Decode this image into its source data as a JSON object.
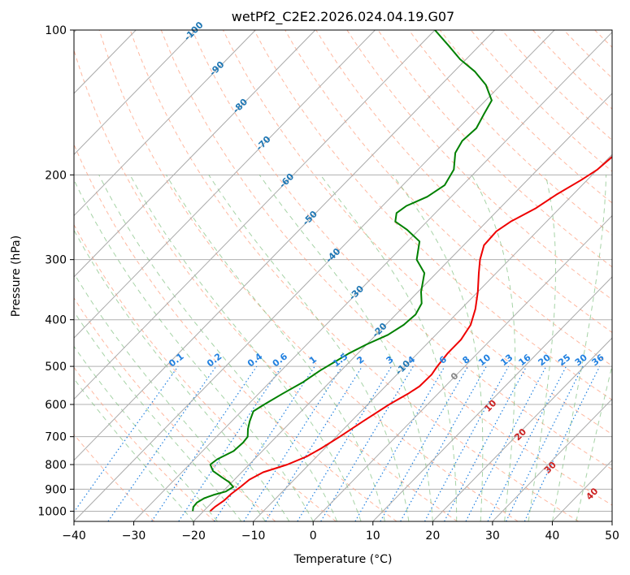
{
  "chart_data": {
    "type": "skew-t",
    "title": "wetPf2_C2E2.2026.024.04.19.G07",
    "xlabel": "Temperature (°C)",
    "ylabel": "Pressure (hPa)",
    "xlim": [
      -40,
      50
    ],
    "ylim": [
      1050,
      100
    ],
    "y_scale": "log",
    "x_ticks": [
      -40,
      -30,
      -20,
      -10,
      0,
      10,
      20,
      30,
      40,
      50
    ],
    "x_tick_labels": [
      "−40",
      "−30",
      "−20",
      "−10",
      "0",
      "10",
      "20",
      "30",
      "40",
      "50"
    ],
    "y_ticks": [
      100,
      200,
      300,
      400,
      500,
      600,
      700,
      800,
      900,
      1000
    ],
    "y_tick_labels": [
      "100",
      "200",
      "300",
      "400",
      "500",
      "600",
      "700",
      "800",
      "900",
      "1000"
    ],
    "grid": true,
    "colors": {
      "temperature": "#ee0000",
      "dewpoint": "#008000",
      "isotherm": "#aaaaaa",
      "dry_adiabat": "#ffa080",
      "moist_adiabat": "#80c080",
      "mixing_ratio": "#2080e0",
      "isotherm_label": "#1f77b4",
      "moist_label": "#cc2222",
      "moist_label_zero": "#888888"
    },
    "series": [
      {
        "kind": "temperature",
        "points": [
          [
            1000,
            -18.9
          ],
          [
            980,
            -18.8
          ],
          [
            950,
            -18.3
          ],
          [
            920,
            -18.2
          ],
          [
            890,
            -17.8
          ],
          [
            860,
            -17.5
          ],
          [
            830,
            -16.4
          ],
          [
            800,
            -13.6
          ],
          [
            770,
            -11.7
          ],
          [
            740,
            -10.6
          ],
          [
            700,
            -9.4
          ],
          [
            650,
            -8.0
          ],
          [
            600,
            -6.4
          ],
          [
            570,
            -5.0
          ],
          [
            550,
            -4.3
          ],
          [
            520,
            -4.2
          ],
          [
            500,
            -4.6
          ],
          [
            470,
            -5.0
          ],
          [
            440,
            -5.0
          ],
          [
            410,
            -5.8
          ],
          [
            380,
            -7.6
          ],
          [
            350,
            -10.0
          ],
          [
            320,
            -12.9
          ],
          [
            300,
            -14.9
          ],
          [
            280,
            -16.6
          ],
          [
            262,
            -16.8
          ],
          [
            250,
            -16.0
          ],
          [
            235,
            -14.0
          ],
          [
            220,
            -12.8
          ],
          [
            205,
            -11.0
          ],
          [
            195,
            -10.0
          ],
          [
            180,
            -9.5
          ],
          [
            165,
            -9.0
          ],
          [
            150,
            -8.7
          ],
          [
            140,
            -8.6
          ],
          [
            130,
            -9.0
          ],
          [
            122,
            -10.3
          ],
          [
            115,
            -12.0
          ],
          [
            108,
            -13.5
          ],
          [
            100,
            -15.0
          ]
        ]
      },
      {
        "kind": "dewpoint",
        "points": [
          [
            1000,
            -21.8
          ],
          [
            980,
            -22.4
          ],
          [
            960,
            -22.5
          ],
          [
            940,
            -22.0
          ],
          [
            925,
            -21.0
          ],
          [
            910,
            -19.5
          ],
          [
            890,
            -19.0
          ],
          [
            870,
            -20.5
          ],
          [
            850,
            -22.5
          ],
          [
            825,
            -25.0
          ],
          [
            800,
            -26.5
          ],
          [
            780,
            -26.2
          ],
          [
            750,
            -24.8
          ],
          [
            720,
            -24.6
          ],
          [
            700,
            -24.8
          ],
          [
            675,
            -26.0
          ],
          [
            650,
            -27.0
          ],
          [
            620,
            -28.0
          ],
          [
            600,
            -27.3
          ],
          [
            570,
            -26.0
          ],
          [
            540,
            -24.5
          ],
          [
            510,
            -23.5
          ],
          [
            490,
            -22.5
          ],
          [
            470,
            -21.5
          ],
          [
            450,
            -20.0
          ],
          [
            430,
            -18.0
          ],
          [
            410,
            -17.0
          ],
          [
            390,
            -16.7
          ],
          [
            370,
            -17.5
          ],
          [
            350,
            -19.5
          ],
          [
            320,
            -22.0
          ],
          [
            300,
            -25.5
          ],
          [
            275,
            -28.0
          ],
          [
            260,
            -32.0
          ],
          [
            250,
            -35.3
          ],
          [
            240,
            -36.5
          ],
          [
            232,
            -36.0
          ],
          [
            222,
            -34.0
          ],
          [
            210,
            -33.0
          ],
          [
            195,
            -34.0
          ],
          [
            180,
            -36.5
          ],
          [
            170,
            -37.3
          ],
          [
            160,
            -37.0
          ],
          [
            150,
            -38.0
          ],
          [
            140,
            -39.0
          ],
          [
            130,
            -42.5
          ],
          [
            122,
            -46.5
          ],
          [
            115,
            -51.0
          ],
          [
            108,
            -55.0
          ],
          [
            100,
            -60.0
          ]
        ]
      }
    ],
    "isotherm_labels": [
      "-100",
      "-90",
      "-80",
      "-70",
      "-60",
      "-50",
      "-40",
      "-30",
      "-20",
      "-10"
    ],
    "mixing_ratio_labels": [
      "0.1",
      "0.2",
      "0.4",
      "0.6",
      "1",
      "1.5",
      "2",
      "3",
      "4",
      "6",
      "8",
      "10",
      "13",
      "16",
      "20",
      "25",
      "30",
      "36"
    ],
    "moist_adiabat_labels": [
      "0",
      "10",
      "20",
      "30",
      "40"
    ]
  }
}
